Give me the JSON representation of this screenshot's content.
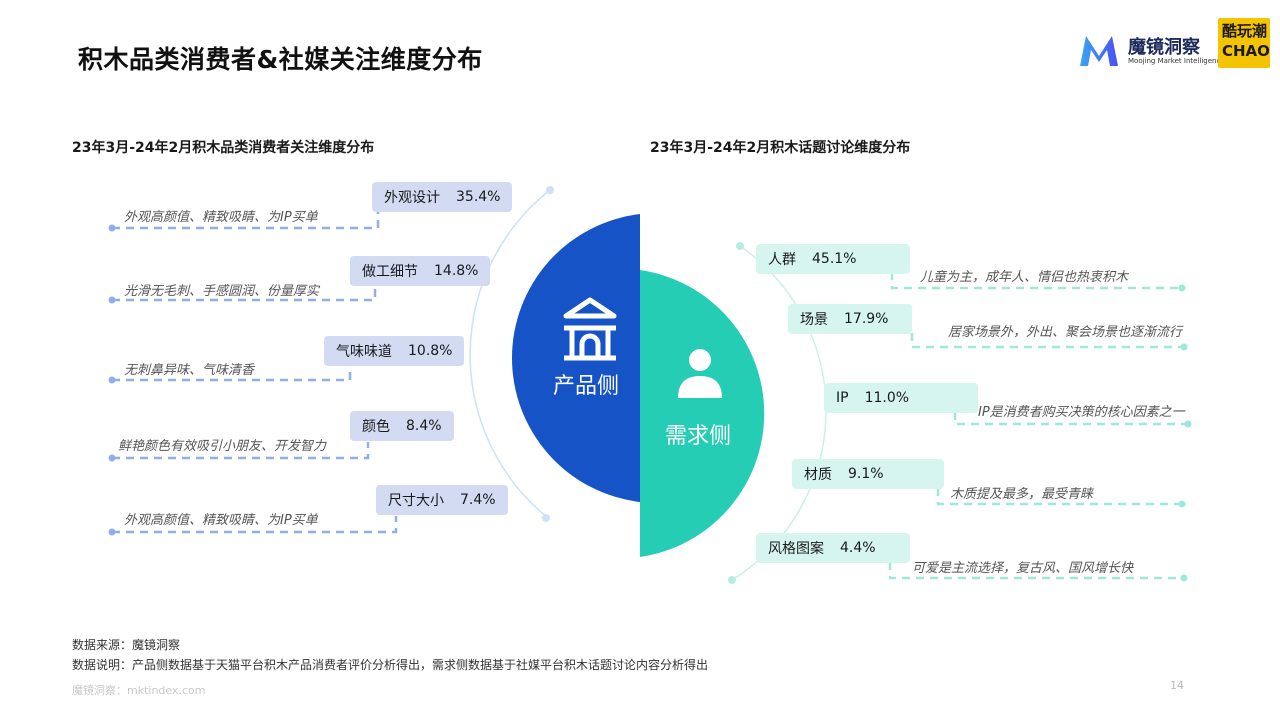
{
  "title": "积木品类消费者&社媒关注维度分布",
  "logo": {
    "name": "魔镜洞察",
    "tagline": "Moojing Market Intelligence",
    "partner_line1": "酷玩潮",
    "partner_line2": "CHAO"
  },
  "left": {
    "subtitle": "23年3月-24年2月积木品类消费者关注维度分布",
    "half_label": "产品侧"
  },
  "right": {
    "subtitle": "23年3月-24年2月积木话题讨论维度分布",
    "half_label": "需求侧"
  },
  "footer": {
    "source": "数据来源：魔镜洞察",
    "note": "数据说明：产品侧数据基于天猫平台积木产品消费者评价分析得出，需求侧数据基于社媒平台积木话题讨论内容分析得出",
    "watermark": "魔镜洞察：mktindex.com",
    "page": "14"
  },
  "colors": {
    "left_half": "#1553c7",
    "right_half": "#26cdb5",
    "left_pill": "#d3dbf3",
    "right_pill": "#d6f5ee",
    "left_line": "#8fb0e6",
    "right_line": "#9ee8da"
  },
  "chart_data": [
    {
      "type": "bar",
      "title": "23年3月-24年2月积木品类消费者关注维度分布",
      "categories": [
        "外观设计",
        "做工细节",
        "气味味道",
        "颜色",
        "尺寸大小"
      ],
      "values": [
        35.4,
        14.8,
        10.8,
        8.4,
        7.4
      ],
      "value_labels": [
        "35.4%",
        "14.8%",
        "10.8%",
        "8.4%",
        "7.4%"
      ],
      "annotations": [
        "外观高颜值、精致吸睛、为IP买单",
        "光滑无毛刺、手感圆润、份量厚实",
        "无刺鼻异味、气味清香",
        "鲜艳颜色有效吸引小朋友、开发智力",
        "外观高颜值、精致吸睛、为IP买单"
      ]
    },
    {
      "type": "bar",
      "title": "23年3月-24年2月积木话题讨论维度分布",
      "categories": [
        "人群",
        "场景",
        "IP",
        "材质",
        "风格图案"
      ],
      "values": [
        45.1,
        17.9,
        11.0,
        9.1,
        4.4
      ],
      "value_labels": [
        "45.1%",
        "17.9%",
        "11.0%",
        "9.1%",
        "4.4%"
      ],
      "annotations": [
        "儿童为主，成年人、情侣也热衷积木",
        "居家场景外，外出、聚会场景也逐渐流行",
        "IP是消费者购买决策的核心因素之一",
        "木质提及最多，最受青睐",
        "可爱是主流选择，复古风、国风增长快"
      ]
    }
  ]
}
